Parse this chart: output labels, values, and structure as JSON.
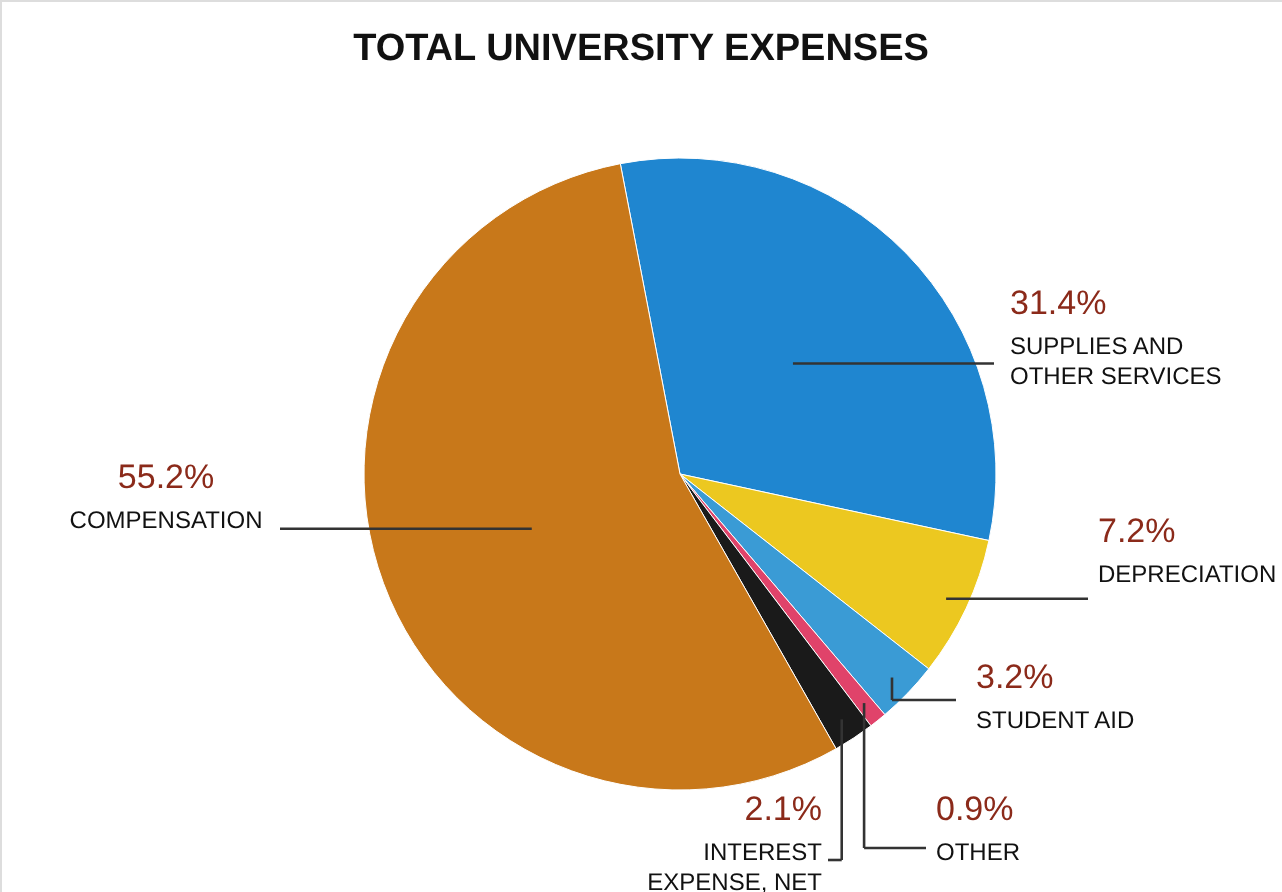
{
  "chart_data": {
    "type": "pie",
    "title": "TOTAL UNIVERSITY EXPENSES",
    "categories": [
      "SUPPLIES AND OTHER SERVICES",
      "DEPRECIATION",
      "STUDENT AID",
      "OTHER",
      "INTEREST EXPENSE, NET",
      "COMPENSATION"
    ],
    "values": [
      31.4,
      7.2,
      3.2,
      0.9,
      2.1,
      55.2
    ],
    "colors": [
      "#1f86d0",
      "#ecc820",
      "#3a9bd5",
      "#e0436a",
      "#1a1a1a",
      "#c8781a"
    ],
    "value_labels": [
      "31.4%",
      "7.2%",
      "3.2%",
      "0.9%",
      "2.1%",
      "55.2%"
    ]
  }
}
